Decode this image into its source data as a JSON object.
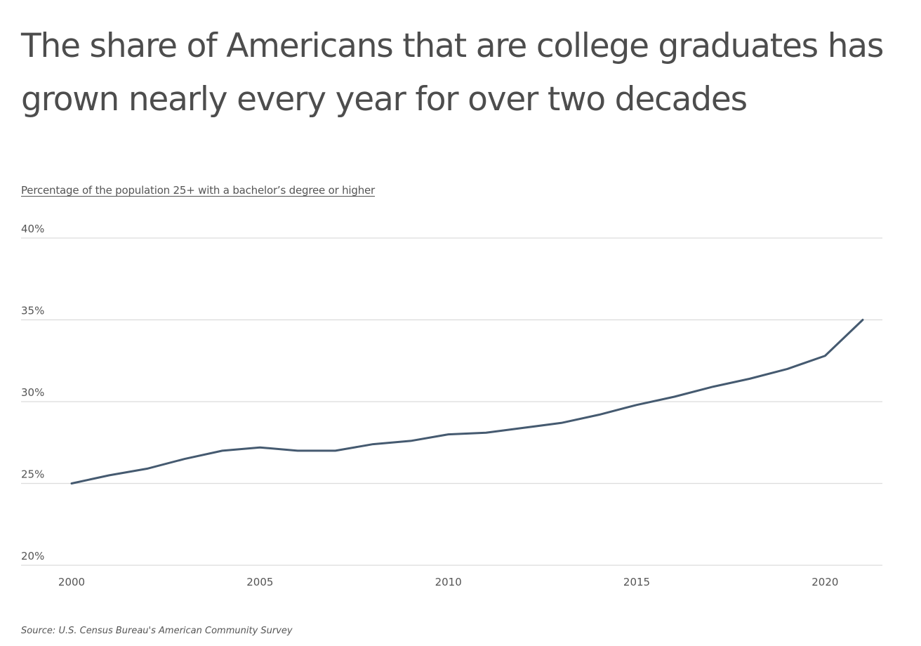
{
  "header": {
    "title": "The share of Americans that are college graduates has grown nearly every year for over two decades",
    "subtitle": "Percentage of the population 25+ with a bachelor’s degree or higher"
  },
  "footer": {
    "source": "Source: U.S. Census Bureau's American Community Survey"
  },
  "colors": {
    "line": "#455a70",
    "grid": "#dcdcdc",
    "axis_text": "#555555"
  },
  "chart_data": {
    "type": "line",
    "title": "The share of Americans that are college graduates has grown nearly every year for over two decades",
    "subtitle": "Percentage of the population 25+ with a bachelor’s degree or higher",
    "xlabel": "",
    "ylabel": "",
    "x": [
      2000,
      2001,
      2002,
      2003,
      2004,
      2005,
      2006,
      2007,
      2008,
      2009,
      2010,
      2011,
      2012,
      2013,
      2014,
      2015,
      2016,
      2017,
      2018,
      2019,
      2020,
      2021
    ],
    "series": [
      {
        "values": [
          25.0,
          25.5,
          25.9,
          26.5,
          27.0,
          27.2,
          27.0,
          27.0,
          27.4,
          27.6,
          28.0,
          28.1,
          28.4,
          28.7,
          29.2,
          29.8,
          30.3,
          30.9,
          31.4,
          32.0,
          32.8,
          35.0
        ]
      }
    ],
    "ylim": [
      20,
      40
    ],
    "xlim": [
      2000,
      2021
    ],
    "yticks": [
      20,
      25,
      30,
      35,
      40
    ],
    "ytick_labels": [
      "20%",
      "25%",
      "30%",
      "35%",
      "40%"
    ],
    "xticks": [
      2000,
      2005,
      2010,
      2015,
      2020
    ],
    "xtick_labels": [
      "2000",
      "2005",
      "2010",
      "2015",
      "2020"
    ],
    "grid": "horizontal",
    "legend": "none",
    "source": "Source: U.S. Census Bureau's American Community Survey"
  }
}
